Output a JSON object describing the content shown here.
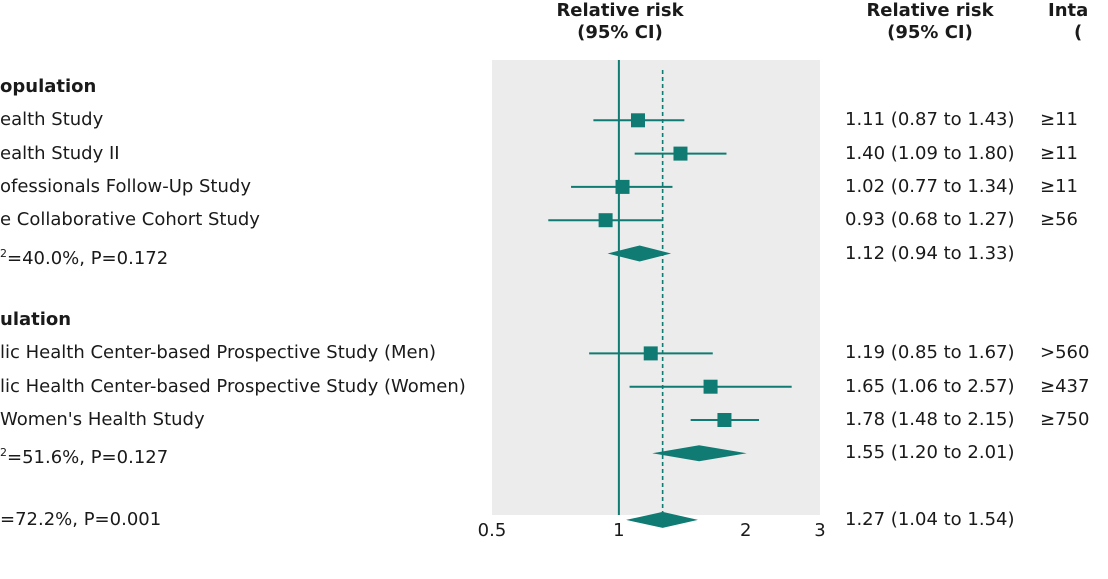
{
  "headers": {
    "plot": [
      "Relative risk",
      "(95% CI)"
    ],
    "rr": [
      "Relative risk",
      "(95% CI)"
    ],
    "intake": [
      "Inta",
      "("
    ]
  },
  "colors": {
    "accent": "#0f7b73",
    "plot_bg": "#ececec"
  },
  "chart_data": {
    "type": "forest",
    "xscale": "log",
    "xlim": [
      0.5,
      3
    ],
    "xticks": [
      0.5,
      1,
      2,
      3
    ],
    "xtick_labels": [
      "0.5",
      "1",
      "2",
      "3"
    ],
    "null_line": 1,
    "pooled_line": 1.27,
    "rows": [
      {
        "label": "opulation",
        "bold": true,
        "kind": "header"
      },
      {
        "label": "ealth Study",
        "kind": "study",
        "rr": 1.11,
        "lo": 0.87,
        "hi": 1.43,
        "text": "1.11 (0.87 to 1.43)",
        "intake": "≥11"
      },
      {
        "label": "ealth Study II",
        "kind": "study",
        "rr": 1.4,
        "lo": 1.09,
        "hi": 1.8,
        "text": "1.40 (1.09 to 1.80)",
        "intake": "≥11"
      },
      {
        "label": "ofessionals Follow-Up Study",
        "kind": "study",
        "rr": 1.02,
        "lo": 0.77,
        "hi": 1.34,
        "text": "1.02 (0.77 to 1.34)",
        "intake": "≥11"
      },
      {
        "label": "e Collaborative Cohort Study",
        "kind": "study",
        "rr": 0.93,
        "lo": 0.68,
        "hi": 1.27,
        "text": "0.93 (0.68 to 1.27)",
        "intake": "≥56"
      },
      {
        "label": "=40.0%, P=0.172",
        "sup": "2",
        "kind": "subtotal",
        "rr": 1.12,
        "lo": 0.94,
        "hi": 1.33,
        "text": "1.12 (0.94 to 1.33)"
      },
      {
        "kind": "blank"
      },
      {
        "label": "ulation",
        "bold": true,
        "kind": "header"
      },
      {
        "label": "lic Health Center-based Prospective Study (Men)",
        "kind": "study",
        "rr": 1.19,
        "lo": 0.85,
        "hi": 1.67,
        "text": "1.19 (0.85 to 1.67)",
        "intake": ">560"
      },
      {
        "label": "lic Health Center-based Prospective Study (Women)",
        "kind": "study",
        "rr": 1.65,
        "lo": 1.06,
        "hi": 2.57,
        "text": "1.65 (1.06 to 2.57)",
        "intake": "≥437"
      },
      {
        "label": " Women's Health Study",
        "kind": "study",
        "rr": 1.78,
        "lo": 1.48,
        "hi": 2.15,
        "text": "1.78 (1.48 to 2.15)",
        "intake": "≥750"
      },
      {
        "label": "=51.6%, P=0.127",
        "sup": "2",
        "kind": "subtotal",
        "rr": 1.55,
        "lo": 1.2,
        "hi": 2.01,
        "text": "1.55 (1.20 to 2.01)"
      },
      {
        "kind": "blank"
      },
      {
        "label": "=72.2%, P=0.001",
        "kind": "overall",
        "rr": 1.27,
        "lo": 1.04,
        "hi": 1.54,
        "text": "1.27 (1.04 to 1.54)"
      }
    ]
  }
}
